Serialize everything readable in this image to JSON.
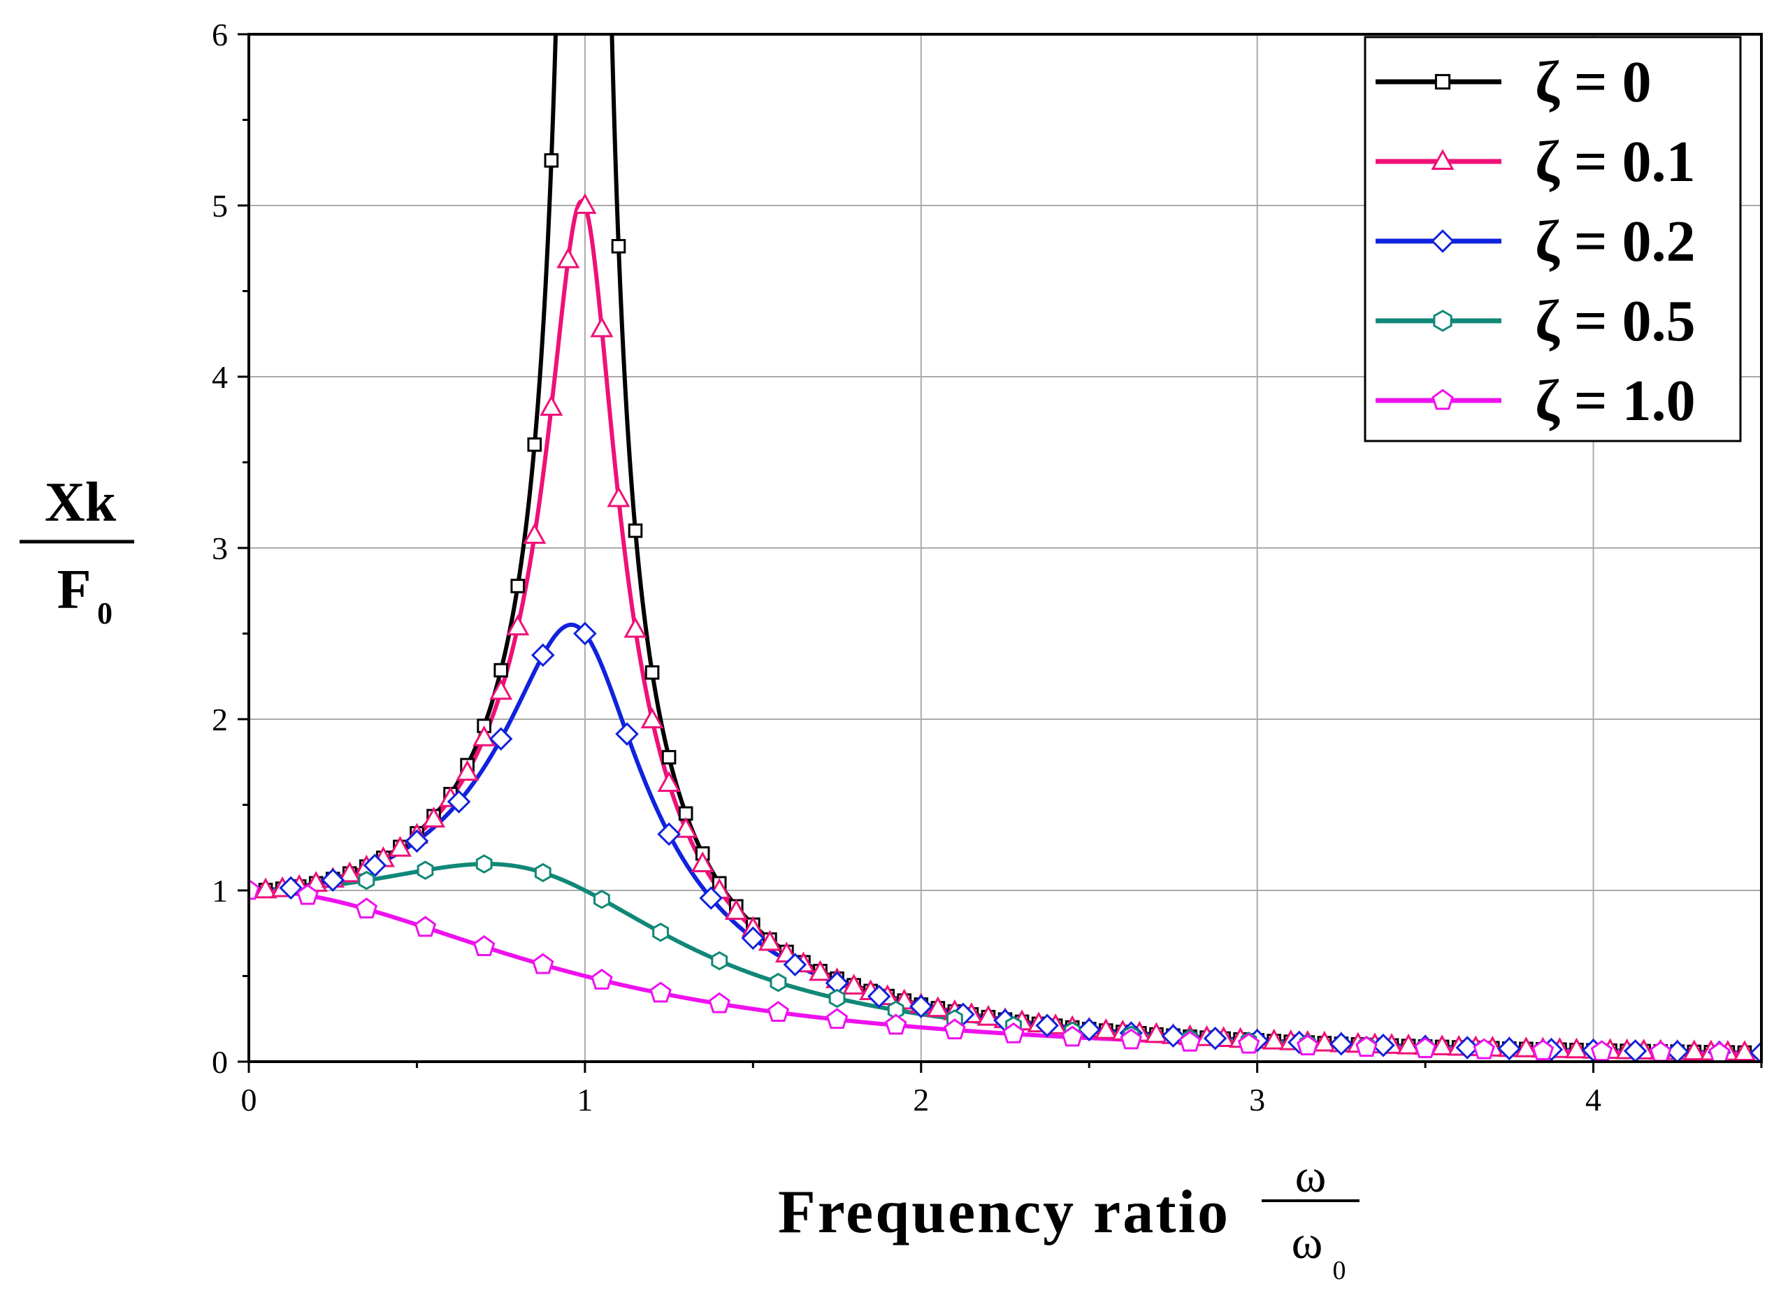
{
  "chart_data": {
    "type": "line",
    "title": "",
    "xlabel": "Frequency ratio",
    "xlabel_fraction": {
      "numerator": "ω",
      "denominator": "ω",
      "denominator_subscript": "0"
    },
    "ylabel_fraction": {
      "numerator": "Xk",
      "denominator": "F",
      "denominator_subscript": "0"
    },
    "xlim": [
      0,
      4.5
    ],
    "ylim": [
      0,
      6
    ],
    "x_ticks": [
      0,
      1,
      2,
      3,
      4
    ],
    "x_tick_labels": [
      "0",
      "1",
      "2",
      "3",
      "4"
    ],
    "y_ticks": [
      0,
      1,
      2,
      3,
      4,
      5,
      6
    ],
    "y_tick_labels": [
      "0",
      "1",
      "2",
      "3",
      "4",
      "5",
      "6"
    ],
    "grid": true,
    "legend_position": "top-right",
    "x_marker_step": 0.05,
    "series": [
      {
        "name": "ζ = 0",
        "zeta": 0,
        "color": "#000000",
        "marker": "square",
        "marker_x": [
          0.05,
          0.1,
          0.15,
          0.2,
          0.25,
          0.3,
          0.35,
          0.4,
          0.45,
          0.5,
          0.55,
          0.6,
          0.65,
          0.7,
          0.75,
          0.8,
          0.85,
          0.9,
          1.1,
          1.15,
          1.2,
          1.25,
          1.3,
          1.35,
          1.4,
          1.45,
          1.5,
          1.55,
          1.6,
          1.65,
          1.7,
          1.75,
          1.8,
          1.85,
          1.9,
          1.95,
          2.0,
          2.05,
          2.1,
          2.15,
          2.2,
          2.25,
          2.3,
          2.35,
          2.4,
          2.45,
          2.5,
          2.55,
          2.6,
          2.65,
          2.7,
          2.75,
          2.8,
          2.85,
          2.9,
          2.95,
          3.0,
          3.05,
          3.1,
          3.15,
          3.2,
          3.25,
          3.3,
          3.35,
          3.4,
          3.45,
          3.5,
          3.55,
          3.6,
          3.65,
          3.7,
          3.75,
          3.8,
          3.85,
          3.9,
          3.95,
          4.0,
          4.05,
          4.1,
          4.15,
          4.2,
          4.25,
          4.3,
          4.35,
          4.4,
          4.45
        ]
      },
      {
        "name": "ζ = 0.1",
        "zeta": 0.1,
        "color": "#ee1177",
        "marker": "triangle",
        "marker_x": [
          0.05,
          0.1,
          0.15,
          0.2,
          0.25,
          0.3,
          0.35,
          0.4,
          0.45,
          0.5,
          0.55,
          0.6,
          0.65,
          0.7,
          0.75,
          0.8,
          0.85,
          0.9,
          0.95,
          1.0,
          1.05,
          1.1,
          1.15,
          1.2,
          1.25,
          1.3,
          1.35,
          1.4,
          1.45,
          1.5,
          1.55,
          1.6,
          1.65,
          1.7,
          1.75,
          1.8,
          1.85,
          1.9,
          1.95,
          2.0,
          2.05,
          2.1,
          2.15,
          2.2,
          2.25,
          2.3,
          2.35,
          2.4,
          2.45,
          2.5,
          2.55,
          2.6,
          2.65,
          2.7,
          2.75,
          2.8,
          2.85,
          2.9,
          2.95,
          3.0,
          3.05,
          3.1,
          3.15,
          3.2,
          3.25,
          3.3,
          3.35,
          3.4,
          3.45,
          3.5,
          3.55,
          3.6,
          3.65,
          3.7,
          3.75,
          3.8,
          3.85,
          3.9,
          3.95,
          4.0,
          4.05,
          4.1,
          4.15,
          4.2,
          4.25,
          4.3,
          4.35,
          4.4,
          4.45
        ]
      },
      {
        "name": "ζ = 0.2",
        "zeta": 0.2,
        "color": "#1122dd",
        "marker": "diamond",
        "marker_x": [
          0.125,
          0.25,
          0.375,
          0.5,
          0.625,
          0.75,
          0.875,
          1.0,
          1.125,
          1.25,
          1.375,
          1.5,
          1.625,
          1.75,
          1.875,
          2.0,
          2.125,
          2.25,
          2.375,
          2.5,
          2.625,
          2.75,
          2.875,
          3.0,
          3.125,
          3.25,
          3.375,
          3.5,
          3.625,
          3.75,
          3.875,
          4.0,
          4.125,
          4.25,
          4.375,
          4.5
        ]
      },
      {
        "name": "ζ = 0.5",
        "zeta": 0.5,
        "color": "#118877",
        "marker": "hexagon",
        "marker_x": [
          0.35,
          0.525,
          0.7,
          0.875,
          1.05,
          1.225,
          1.4,
          1.575,
          1.75,
          1.925,
          2.1,
          2.275,
          2.45,
          2.625,
          2.8,
          2.975,
          3.15,
          3.325,
          3.5,
          3.675,
          3.85,
          4.025,
          4.2,
          4.375
        ]
      },
      {
        "name": "ζ = 1.0",
        "zeta": 1.0,
        "color": "#ee11ee",
        "marker": "pentagon",
        "marker_x": [
          0,
          0.175,
          0.35,
          0.525,
          0.7,
          0.875,
          1.05,
          1.225,
          1.4,
          1.575,
          1.75,
          1.925,
          2.1,
          2.275,
          2.45,
          2.625,
          2.8,
          2.975,
          3.15,
          3.325,
          3.5,
          3.675,
          3.85,
          4.025,
          4.2,
          4.375
        ]
      }
    ]
  }
}
